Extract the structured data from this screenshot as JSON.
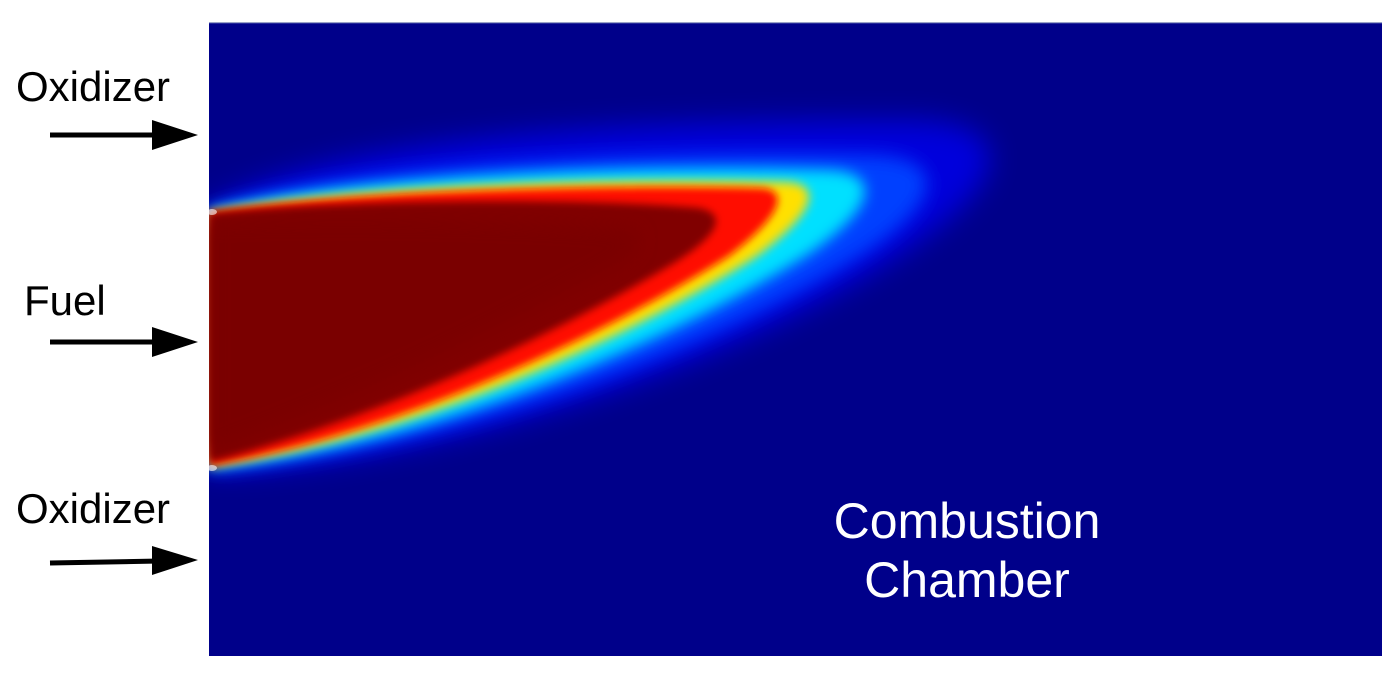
{
  "inlets": {
    "oxidizer_top": "Oxidizer",
    "fuel": "Fuel",
    "oxidizer_bottom": "Oxidizer"
  },
  "chamber": {
    "label_line_1": "Combustion",
    "label_line_2": "Chamber"
  },
  "colors": {
    "background": "#00008a",
    "flame_core": "#800000",
    "flame_edge": "#ff0000",
    "arrow": "#000000",
    "label_on_field": "#ffffff"
  },
  "icons": [
    "arrow-right-icon"
  ]
}
